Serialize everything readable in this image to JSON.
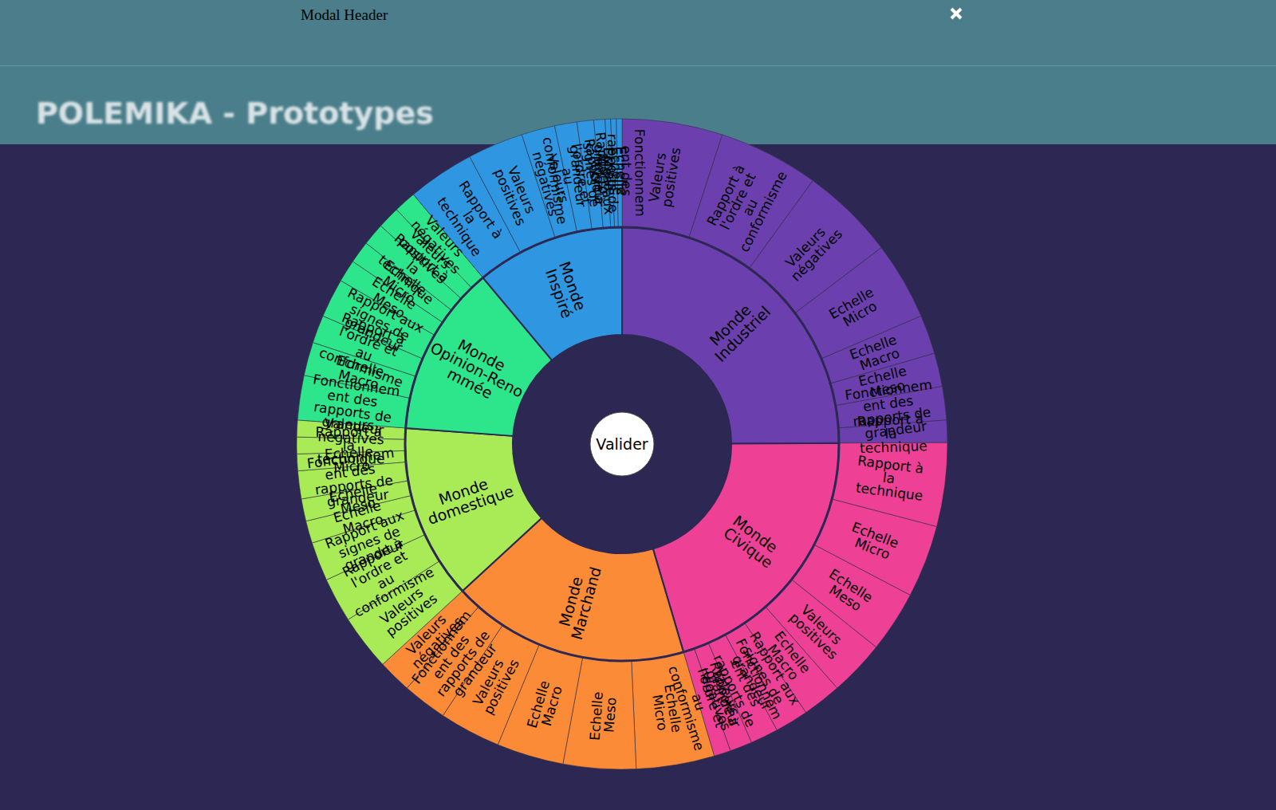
{
  "page": {
    "title": "POLEMIKA - Prototypes",
    "modal_header": "Modal Header"
  },
  "chart_data": {
    "type": "sunburst",
    "center_label": "Valider",
    "series": [
      {
        "name": "Monde Industriel",
        "color": "#6b40ae",
        "children": [
          {
            "name": "Valeurs positives",
            "value": 18
          },
          {
            "name": "Rapport à l'ordre et au conformisme",
            "value": 18
          },
          {
            "name": "Valeurs négatives",
            "value": 17
          },
          {
            "name": "Echelle Micro",
            "value": 14
          },
          {
            "name": "Echelle Macro",
            "value": 7
          },
          {
            "name": "Echelle Meso",
            "value": 6
          },
          {
            "name": "Fonctionnement des rapports de grandeur",
            "value": 6
          },
          {
            "name": "Rapport à la technique",
            "value": 4
          }
        ]
      },
      {
        "name": "Monde Civique",
        "color": "#ee4195",
        "children": [
          {
            "name": "Rapport à la technique",
            "value": 15
          },
          {
            "name": "Echelle Micro",
            "value": 13
          },
          {
            "name": "Echelle Meso",
            "value": 11
          },
          {
            "name": "Valeurs positives",
            "value": 10
          },
          {
            "name": "Echelle Macro",
            "value": 7
          },
          {
            "name": "Rapport aux signes de grandeur",
            "value": 6
          },
          {
            "name": "Fonctionnement des rapports de grandeur",
            "value": 5
          },
          {
            "name": "Valeurs négatives",
            "value": 4
          },
          {
            "name": "Rapport à l'ordre et au conformisme",
            "value": 3
          }
        ]
      },
      {
        "name": "Monde Marchand",
        "color": "#fb8b36",
        "children": [
          {
            "name": "Echelle Micro",
            "value": 14
          },
          {
            "name": "Echelle Meso",
            "value": 13
          },
          {
            "name": "Echelle Macro",
            "value": 12
          },
          {
            "name": "Valeurs positives",
            "value": 11
          },
          {
            "name": "Fonctionnement des rapports de grandeur",
            "value": 8
          },
          {
            "name": "Valeurs négatives",
            "value": 6
          }
        ]
      },
      {
        "name": "Monde domestique",
        "color": "#a9eb57",
        "children": [
          {
            "name": "Valeurs positives",
            "value": 10
          },
          {
            "name": "Rapport à l'ordre et au conformisme",
            "value": 8
          },
          {
            "name": "Rapport aux signes de grandeur",
            "value": 7
          },
          {
            "name": "Echelle Macro",
            "value": 4
          },
          {
            "name": "Echelle Meso",
            "value": 4
          },
          {
            "name": "Fonctionnement des rapports de grandeur",
            "value": 5
          },
          {
            "name": "Echelle Micro",
            "value": 3
          },
          {
            "name": "Rapport à la technique",
            "value": 3
          },
          {
            "name": "Valeurs négatives",
            "value": 3
          }
        ]
      },
      {
        "name": "Monde Opinion-Renommée",
        "color": "#2de68b",
        "children": [
          {
            "name": "Fonctionnement des rapports de grandeur",
            "value": 8
          },
          {
            "name": "Echelle Macro",
            "value": 6
          },
          {
            "name": "Rapport à l'ordre et au conformisme",
            "value": 5
          },
          {
            "name": "Rapport aux signes de grandeur",
            "value": 7
          },
          {
            "name": "Echelle Meso",
            "value": 4
          },
          {
            "name": "Echelle Micro",
            "value": 4
          },
          {
            "name": "Rapport à la technique",
            "value": 4
          },
          {
            "name": "Valeurs positives",
            "value": 4
          },
          {
            "name": "Valeurs négatives",
            "value": 4
          }
        ]
      },
      {
        "name": "Monde Inspiré",
        "color": "#2f97e1",
        "children": [
          {
            "name": "Rapport à la technique",
            "value": 12
          },
          {
            "name": "Valeurs positives",
            "value": 10
          },
          {
            "name": "Valeurs négatives",
            "value": 6
          },
          {
            "name": "Rapport à l'ordre et au conformisme",
            "value": 4
          },
          {
            "name": "Rapport aux signes de grandeur",
            "value": 3
          },
          {
            "name": "Echelle Micro",
            "value": 2
          },
          {
            "name": "Echelle Macro",
            "value": 1
          },
          {
            "name": "Echelle Meso",
            "value": 1
          },
          {
            "name": "Fonctionnement des rapports de grandeur",
            "value": 1
          }
        ]
      }
    ]
  }
}
